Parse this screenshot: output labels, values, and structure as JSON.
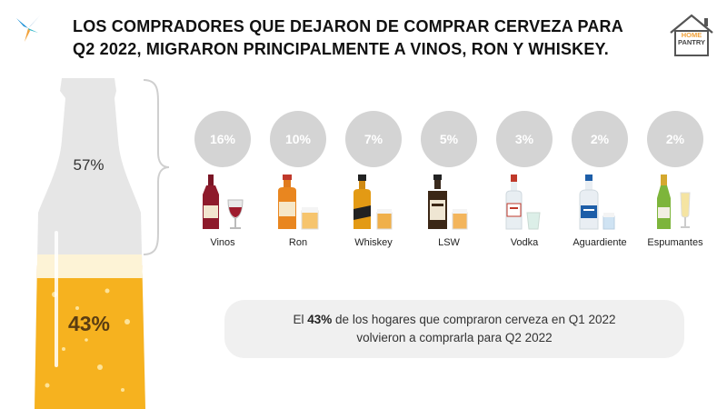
{
  "title": "LOS COMPRADORES QUE DEJARON DE COMPRAR CERVEZA PARA Q2 2022, MIGRARON PRINCIPALMENTE A VINOS, RON Y WHISKEY.",
  "brand": {
    "line1": "HOME",
    "line2": "PANTRY"
  },
  "bottle": {
    "top_pct": "57%",
    "bottom_pct": "43%",
    "fill_fraction": 0.43
  },
  "categories": [
    {
      "pct": "16%",
      "label": "Vinos",
      "icon": "wine-bottle-glass-icon"
    },
    {
      "pct": "10%",
      "label": "Ron",
      "icon": "rum-bottle-glass-icon"
    },
    {
      "pct": "7%",
      "label": "Whiskey",
      "icon": "whiskey-bottle-glass-icon"
    },
    {
      "pct": "5%",
      "label": "LSW",
      "icon": "lsw-bottle-glass-icon"
    },
    {
      "pct": "3%",
      "label": "Vodka",
      "icon": "vodka-bottle-glass-icon"
    },
    {
      "pct": "2%",
      "label": "Aguardiente",
      "icon": "aguardiente-bottle-glass-icon"
    },
    {
      "pct": "2%",
      "label": "Espumantes",
      "icon": "sparkling-bottle-glass-icon"
    }
  ],
  "note": {
    "line1_prefix": "El ",
    "line1_bold": "43%",
    "line1_suffix": " de los hogares que compraron cerveza en Q1 2022",
    "line2": "volvieron a comprarla para Q2 2022"
  },
  "colors": {
    "beer": "#f6b21f",
    "foam": "#fdf3d6",
    "bottle_gray": "#e6e6e6",
    "bubble_gray": "#d4d4d4"
  }
}
